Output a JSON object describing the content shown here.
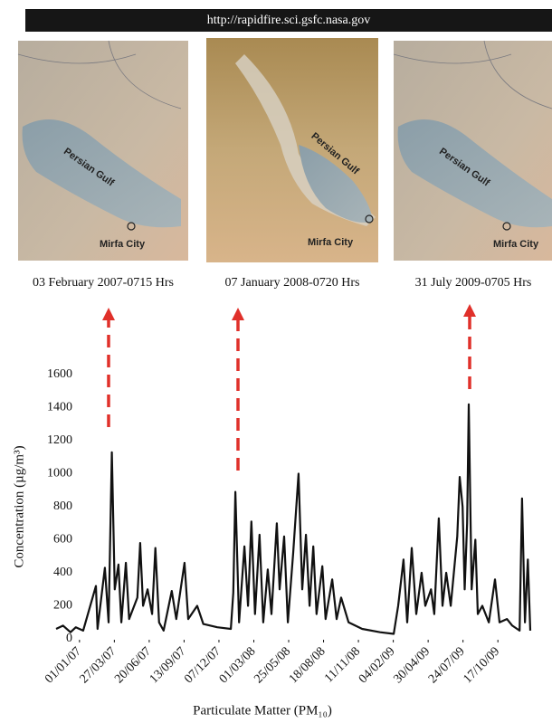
{
  "banner": "http://rapidfire.sci.gsfc.nasa.gov",
  "panels": [
    {
      "gulf_label": "Persian Gulf",
      "city_label": "Mirfa City",
      "caption": "03 February 2007-0715 Hrs"
    },
    {
      "gulf_label": "Persian Gulf",
      "city_label": "Mirfa City",
      "caption": "07 January 2008-0720 Hrs"
    },
    {
      "gulf_label": "Persian Gulf",
      "city_label": "Mirfa City",
      "caption": "31 July 2009-0705 Hrs"
    }
  ],
  "chart_data": {
    "type": "line",
    "ylabel": "Concentration (µg/m³)",
    "xlabel": "Particulate Matter (PM₁₀)",
    "color": "#111111",
    "ylim": [
      0,
      1600
    ],
    "yticks": [
      0,
      200,
      400,
      600,
      800,
      1000,
      1200,
      1400,
      1600
    ],
    "xlim": [
      "05/11/06",
      "04/01/10"
    ],
    "xticks": [
      "01/01/07",
      "27/03/07",
      "20/06/07",
      "13/09/07",
      "07/12/07",
      "01/03/08",
      "25/05/08",
      "18/08/08",
      "11/11/08",
      "04/02/09",
      "30/04/09",
      "24/07/09",
      "17/10/09"
    ],
    "x": [
      "05/11/06",
      "22/11/06",
      "10/12/06",
      "23/12/06",
      "10/01/07",
      "10/02/07",
      "14/02/07",
      "04/03/07",
      "13/03/07",
      "21/03/07",
      "28/03/07",
      "06/04/07",
      "13/04/07",
      "24/04/07",
      "02/05/07",
      "22/05/07",
      "29/05/07",
      "05/06/07",
      "16/06/07",
      "27/06/07",
      "05/07/07",
      "14/07/07",
      "25/07/07",
      "14/08/07",
      "25/08/07",
      "14/09/07",
      "23/09/07",
      "15/10/07",
      "30/10/07",
      "03/12/07",
      "05/01/08",
      "11/01/08",
      "16/01/08",
      "25/01/08",
      "07/02/08",
      "16/02/08",
      "24/02/08",
      "04/03/08",
      "15/03/08",
      "24/03/08",
      "04/04/08",
      "13/04/08",
      "26/04/08",
      "03/05/08",
      "14/05/08",
      "23/05/08",
      "05/06/08",
      "18/06/08",
      "27/06/08",
      "06/07/08",
      "15/07/08",
      "24/07/08",
      "01/08/08",
      "15/08/08",
      "23/08/08",
      "08/09/08",
      "19/09/08",
      "30/09/08",
      "18/10/08",
      "20/11/08",
      "03/01/09",
      "05/02/09",
      "16/02/09",
      "01/03/09",
      "10/03/09",
      "21/03/09",
      "01/04/09",
      "14/04/09",
      "23/04/09",
      "07/05/09",
      "15/05/09",
      "26/05/09",
      "04/06/09",
      "13/06/09",
      "24/06/09",
      "10/07/09",
      "16/07/09",
      "23/07/09",
      "28/07/09",
      "03/08/09",
      "07/08/09",
      "14/08/09",
      "23/08/09",
      "29/08/09",
      "09/09/09",
      "25/09/09",
      "10/10/09",
      "21/10/09",
      "08/11/09",
      "21/11/09",
      "09/12/09",
      "15/12/09",
      "22/12/09",
      "29/12/09",
      "04/01/10"
    ],
    "values": [
      60,
      80,
      40,
      70,
      50,
      320,
      60,
      430,
      100,
      1130,
      300,
      450,
      100,
      460,
      120,
      250,
      580,
      200,
      300,
      150,
      550,
      100,
      50,
      290,
      120,
      460,
      120,
      200,
      90,
      70,
      60,
      280,
      890,
      100,
      560,
      200,
      710,
      150,
      630,
      100,
      420,
      150,
      700,
      300,
      620,
      100,
      520,
      1000,
      300,
      630,
      200,
      560,
      150,
      440,
      120,
      360,
      120,
      250,
      100,
      60,
      40,
      30,
      200,
      480,
      100,
      550,
      150,
      400,
      200,
      300,
      150,
      730,
      200,
      400,
      200,
      620,
      980,
      800,
      300,
      700,
      1420,
      300,
      600,
      150,
      200,
      100,
      360,
      100,
      120,
      80,
      50,
      850,
      100,
      480,
      50
    ]
  }
}
